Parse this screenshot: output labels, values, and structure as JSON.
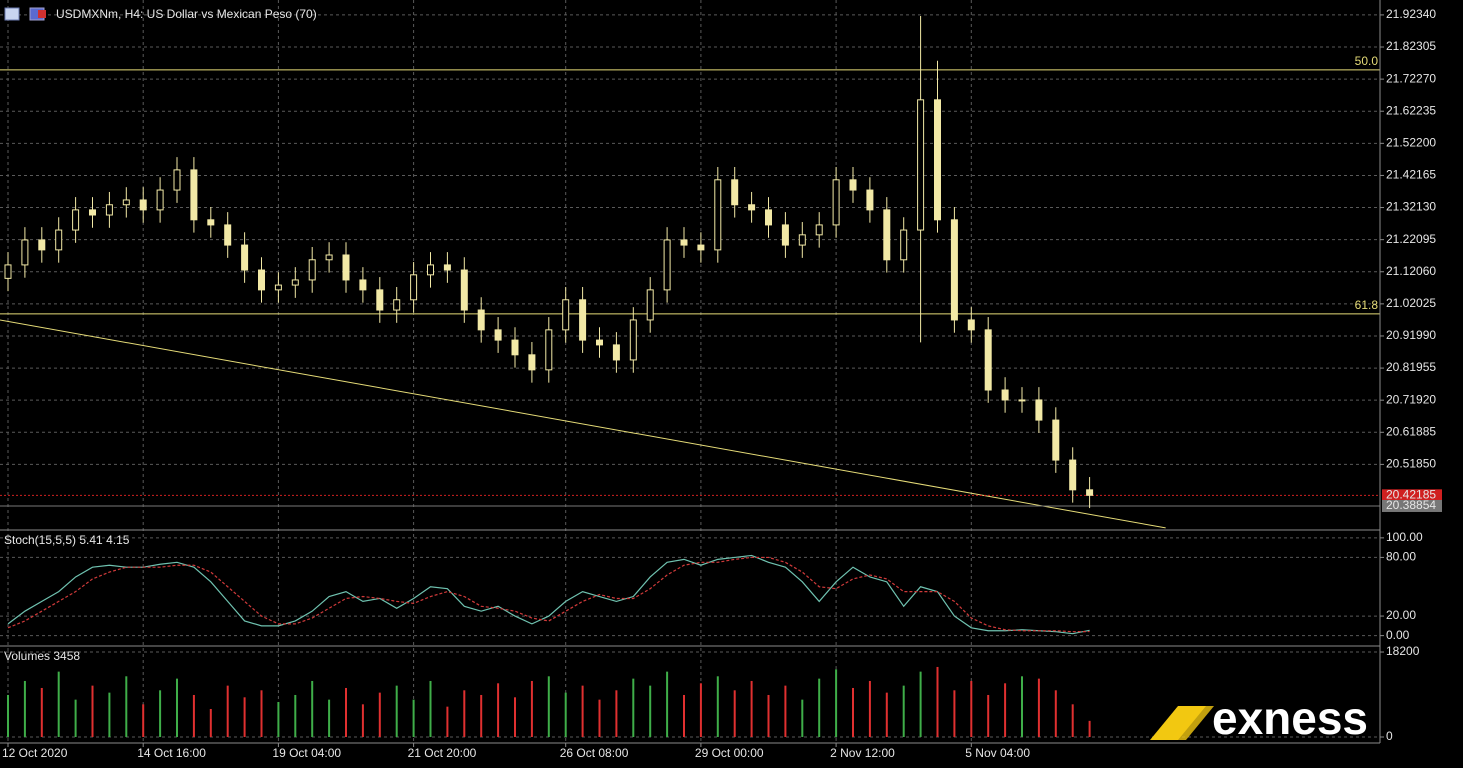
{
  "header": "USDMXNm, H4:  US Dollar vs Mexican Peso (70)",
  "logo": "exness",
  "chart_data": [
    {
      "type": "candlestick",
      "open": [
        21.1,
        21.142,
        21.22,
        21.189,
        21.251,
        21.314,
        21.298,
        21.33,
        21.345,
        21.314,
        21.376,
        21.439,
        21.283,
        21.267,
        21.204,
        21.126,
        21.064,
        21.079,
        21.095,
        21.158,
        21.173,
        21.095,
        21.064,
        21.001,
        21.033,
        21.111,
        21.142,
        21.126,
        21.001,
        20.939,
        20.907,
        20.861,
        20.814,
        20.939,
        21.033,
        20.907,
        20.892,
        20.845,
        20.97,
        21.064,
        21.22,
        21.204,
        21.189,
        21.408,
        21.33,
        21.314,
        21.267,
        21.204,
        21.236,
        21.267,
        21.408,
        21.376,
        21.314,
        21.158,
        21.251,
        21.658,
        21.283,
        20.97,
        20.939,
        20.751,
        20.72,
        20.72,
        20.657,
        20.532,
        20.439
      ],
      "high": [
        21.182,
        21.26,
        21.26,
        21.291,
        21.354,
        21.354,
        21.37,
        21.385,
        21.385,
        21.416,
        21.479,
        21.479,
        21.323,
        21.307,
        21.244,
        21.166,
        21.119,
        21.135,
        21.198,
        21.213,
        21.213,
        21.135,
        21.104,
        21.073,
        21.151,
        21.182,
        21.182,
        21.166,
        21.041,
        20.979,
        20.947,
        20.901,
        20.979,
        21.073,
        21.073,
        20.947,
        20.932,
        21.01,
        21.104,
        21.26,
        21.26,
        21.244,
        21.448,
        21.448,
        21.37,
        21.354,
        21.307,
        21.276,
        21.307,
        21.448,
        21.448,
        21.416,
        21.354,
        21.291,
        21.92,
        21.78,
        21.323,
        21.01,
        20.979,
        20.791,
        20.76,
        20.76,
        20.697,
        20.572,
        20.479
      ],
      "low": [
        21.06,
        21.102,
        21.149,
        21.149,
        21.211,
        21.258,
        21.258,
        21.29,
        21.274,
        21.274,
        21.336,
        21.243,
        21.227,
        21.164,
        21.086,
        21.024,
        21.024,
        21.039,
        21.055,
        21.118,
        21.055,
        21.024,
        20.961,
        20.961,
        20.993,
        21.071,
        21.086,
        20.961,
        20.899,
        20.867,
        20.821,
        20.774,
        20.774,
        20.899,
        20.867,
        20.852,
        20.805,
        20.805,
        20.93,
        21.024,
        21.164,
        21.149,
        21.149,
        21.29,
        21.274,
        21.227,
        21.164,
        21.164,
        21.196,
        21.227,
        21.336,
        21.274,
        21.118,
        21.118,
        20.9,
        21.243,
        20.93,
        20.899,
        20.711,
        20.68,
        20.68,
        20.617,
        20.492,
        20.399,
        20.382
      ],
      "close": [
        21.142,
        21.22,
        21.189,
        21.251,
        21.314,
        21.298,
        21.33,
        21.345,
        21.314,
        21.376,
        21.439,
        21.283,
        21.267,
        21.204,
        21.126,
        21.064,
        21.079,
        21.095,
        21.158,
        21.173,
        21.095,
        21.064,
        21.001,
        21.033,
        21.111,
        21.142,
        21.126,
        21.001,
        20.939,
        20.907,
        20.861,
        20.814,
        20.939,
        21.033,
        20.907,
        20.892,
        20.845,
        20.97,
        21.064,
        21.22,
        21.204,
        21.189,
        21.408,
        21.33,
        21.314,
        21.267,
        21.204,
        21.236,
        21.267,
        21.408,
        21.376,
        21.314,
        21.158,
        21.251,
        21.658,
        21.283,
        20.97,
        20.939,
        20.751,
        20.72,
        20.72,
        20.657,
        20.532,
        20.439,
        20.42185
      ],
      "color": "#f2e9a6",
      "ylim": [
        20.3197,
        21.97
      ],
      "yticks": [
        {
          "value": 21.9234,
          "label": "21.92340"
        },
        21.82305,
        {
          "value": 21.7227,
          "label": "21.72270"
        },
        21.62235,
        {
          "value": 21.522,
          "label": "21.52200"
        },
        21.42165,
        {
          "value": 21.3213,
          "label": "21.32130"
        },
        21.22095,
        {
          "value": 21.1206,
          "label": "21.12060"
        },
        21.02025,
        {
          "value": 20.9199,
          "label": "20.91990"
        },
        20.81955,
        {
          "value": 20.7192,
          "label": "20.71920"
        },
        20.61885,
        {
          "value": 20.5185,
          "label": "20.51850"
        }
      ],
      "hlines": [
        {
          "label": "50.0",
          "value": 21.7515,
          "color": "#e6dc78"
        },
        {
          "label": "61.8",
          "value": 20.989,
          "color": "#e6dc78"
        }
      ],
      "trendline": {
        "x": [
          -0.5,
          68.5
        ],
        "y": [
          20.97,
          20.32
        ],
        "color": "#e6dc78"
      },
      "price_markers": [
        {
          "value": 20.42185,
          "color": "#d02020"
        },
        {
          "value": 20.38854,
          "color": "#777777"
        }
      ],
      "grid": true
    },
    {
      "type": "line",
      "title": "Stoch(15,5,5) 5.41 4.15",
      "series": [
        {
          "color": "#6fc2b0",
          "dash": false,
          "values": [
            12,
            25,
            35,
            45,
            60,
            70,
            72,
            70,
            70,
            73,
            75,
            70,
            55,
            35,
            15,
            10,
            10,
            15,
            25,
            40,
            45,
            35,
            38,
            28,
            38,
            50,
            48,
            30,
            25,
            30,
            20,
            12,
            20,
            35,
            45,
            40,
            35,
            40,
            60,
            75,
            78,
            72,
            78,
            80,
            82,
            75,
            70,
            55,
            35,
            55,
            70,
            60,
            55,
            30,
            50,
            45,
            20,
            8,
            5,
            5,
            6,
            5,
            4,
            2,
            5.41
          ]
        },
        {
          "color": "#d03a3a",
          "dash": true,
          "values": [
            8,
            15,
            25,
            35,
            45,
            58,
            65,
            70,
            70,
            70,
            72,
            72,
            65,
            50,
            35,
            20,
            12,
            12,
            18,
            28,
            38,
            40,
            38,
            35,
            33,
            40,
            45,
            40,
            30,
            28,
            25,
            18,
            15,
            25,
            35,
            42,
            38,
            38,
            48,
            62,
            72,
            75,
            75,
            78,
            80,
            80,
            75,
            65,
            50,
            48,
            58,
            62,
            58,
            45,
            45,
            45,
            35,
            18,
            10,
            6,
            5,
            5,
            5,
            4,
            4.15
          ]
        }
      ],
      "ylim": [
        -9.6,
        106
      ],
      "yticks": [
        {
          "value": 100,
          "label": "100.00"
        },
        {
          "value": 80,
          "label": "80.00"
        },
        {
          "value": 20,
          "label": "20.00"
        },
        {
          "value": 0,
          "label": "0.00"
        }
      ],
      "grid": true
    },
    {
      "type": "bar",
      "title": "Volumes 3458",
      "categories": [
        "12 Oct 2020",
        null,
        null,
        null,
        null,
        null,
        null,
        null,
        "14 Oct 16:00",
        null,
        null,
        null,
        null,
        null,
        null,
        null,
        "19 Oct 04:00",
        null,
        null,
        null,
        null,
        null,
        null,
        null,
        "21 Oct 20:00",
        null,
        null,
        null,
        null,
        null,
        null,
        null,
        null,
        "26 Oct 08:00",
        null,
        null,
        null,
        null,
        null,
        null,
        null,
        "29 Oct 00:00",
        null,
        null,
        null,
        null,
        null,
        null,
        null,
        "2 Nov 12:00",
        null,
        null,
        null,
        null,
        null,
        null,
        null,
        "5 Nov 04:00",
        null,
        null,
        null,
        null,
        null,
        null,
        null
      ],
      "values": [
        9000,
        12000,
        10500,
        14000,
        8000,
        11000,
        9500,
        13000,
        7000,
        10000,
        12500,
        9000,
        6000,
        11000,
        8500,
        10000,
        7500,
        9000,
        12000,
        8000,
        10500,
        7000,
        9500,
        11000,
        8000,
        12000,
        6500,
        10000,
        9000,
        11500,
        8500,
        12000,
        13000,
        9500,
        11000,
        8000,
        10000,
        12500,
        11000,
        14000,
        9000,
        11500,
        13000,
        10000,
        12000,
        9000,
        11000,
        8000,
        12500,
        14500,
        10500,
        12000,
        9500,
        11000,
        14000,
        15000,
        10000,
        12000,
        9000,
        11500,
        13000,
        12500,
        10000,
        7000,
        3458
      ],
      "up_color": "#3fae49",
      "down_color": "#e03030",
      "ylim": [
        -1070,
        19060
      ],
      "yticks": [
        18200,
        0
      ],
      "grid": true
    }
  ]
}
